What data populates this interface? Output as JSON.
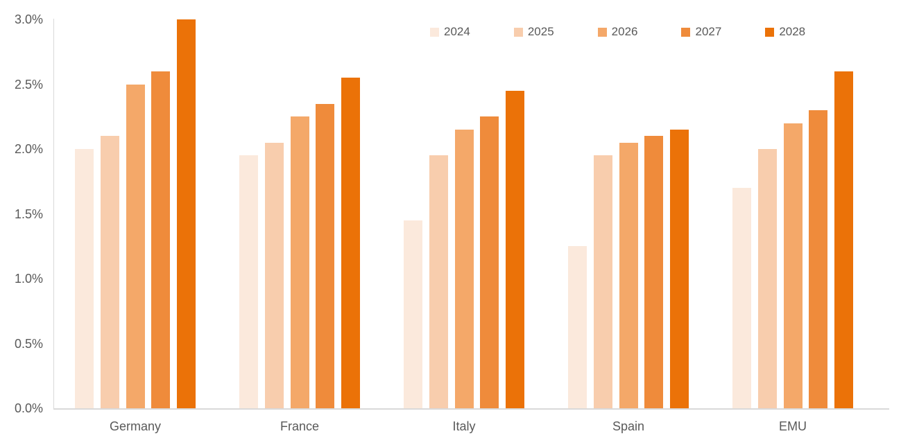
{
  "chart_data": {
    "type": "bar",
    "title": "",
    "xlabel": "",
    "ylabel": "",
    "categories": [
      "Germany",
      "France",
      "Italy",
      "Spain",
      "EMU"
    ],
    "series": [
      {
        "name": "2024",
        "color": "#FBE9DC",
        "values": [
          2.0,
          1.95,
          1.45,
          1.25,
          1.7
        ]
      },
      {
        "name": "2025",
        "color": "#F8CDAD",
        "values": [
          2.1,
          2.05,
          1.95,
          1.95,
          2.0
        ]
      },
      {
        "name": "2026",
        "color": "#F4A869",
        "values": [
          2.5,
          2.25,
          2.15,
          2.05,
          2.2
        ]
      },
      {
        "name": "2027",
        "color": "#EF8B3B",
        "values": [
          2.6,
          2.35,
          2.25,
          2.1,
          2.3
        ]
      },
      {
        "name": "2028",
        "color": "#EB7208",
        "values": [
          3.0,
          2.55,
          2.45,
          2.15,
          2.6
        ]
      }
    ],
    "ylim": [
      0,
      3.0
    ],
    "ytick_step": 0.5,
    "ytick_labels": [
      "0.0%",
      "0.5%",
      "1.0%",
      "1.5%",
      "2.0%",
      "2.5%",
      "3.0%"
    ],
    "grid": false,
    "legend_position": "top-right"
  },
  "colors": {
    "axis_line": "#D9D9D9",
    "label_text": "#595959",
    "background": "#FFFFFF"
  }
}
